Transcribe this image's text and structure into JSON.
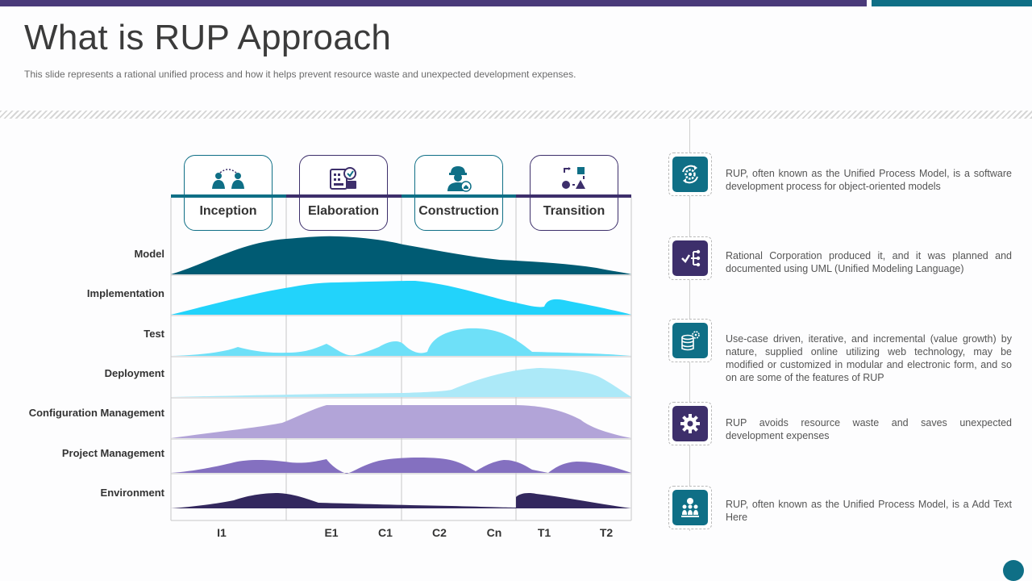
{
  "slide": {
    "title": "What is RUP Approach",
    "subtitle": "This slide represents a rational unified process and how it helps prevent resource waste and unexpected development expenses."
  },
  "phases": [
    {
      "label": "Inception",
      "icon": "users-icon",
      "color": "#0f6f86"
    },
    {
      "label": "Elaboration",
      "icon": "analysis-icon",
      "color": "#3d2f6b"
    },
    {
      "label": "Construction",
      "icon": "engineer-icon",
      "color": "#0f6f86"
    },
    {
      "label": "Transition",
      "icon": "flow-shapes-icon",
      "color": "#3d2f6b"
    }
  ],
  "disciplines": [
    {
      "label": "Model",
      "color": "#005b73"
    },
    {
      "label": "Implementation",
      "color": "#22d3fb"
    },
    {
      "label": "Test",
      "color": "#6ee0f8"
    },
    {
      "label": "Deployment",
      "color": "#ace9f8"
    },
    {
      "label": "Configuration Management",
      "color": "#b2a4d8"
    },
    {
      "label": "Project Management",
      "color": "#8470c0"
    },
    {
      "label": "Environment",
      "color": "#33285e"
    }
  ],
  "milestones": [
    "I1",
    "E1",
    "C1",
    "C2",
    "Cn",
    "T1",
    "T2"
  ],
  "features": [
    {
      "text": "RUP, often known as the Unified Process Model, is a software development process for object-oriented models",
      "icon": "gear-cycle-icon",
      "color": "#0f6f86"
    },
    {
      "text": "Rational Corporation produced it, and it was planned and documented using UML (Unified Modeling Language)",
      "icon": "hierarchy-icon",
      "color": "#3d2f6b"
    },
    {
      "text": "Use-case driven, iterative, and incremental (value growth) by nature, supplied online utilizing web technology, may be modified or customized in modular and electronic form, and so on are some of the features of RUP",
      "icon": "database-settings-icon",
      "color": "#0f6f86"
    },
    {
      "text": "RUP avoids resource waste and saves unexpected development expenses",
      "icon": "gear-icon",
      "color": "#3d2f6b"
    },
    {
      "text": "RUP, often known as the Unified Process Model, is a Add Text Here",
      "icon": "team-icon",
      "color": "#0f6f86"
    }
  ]
}
